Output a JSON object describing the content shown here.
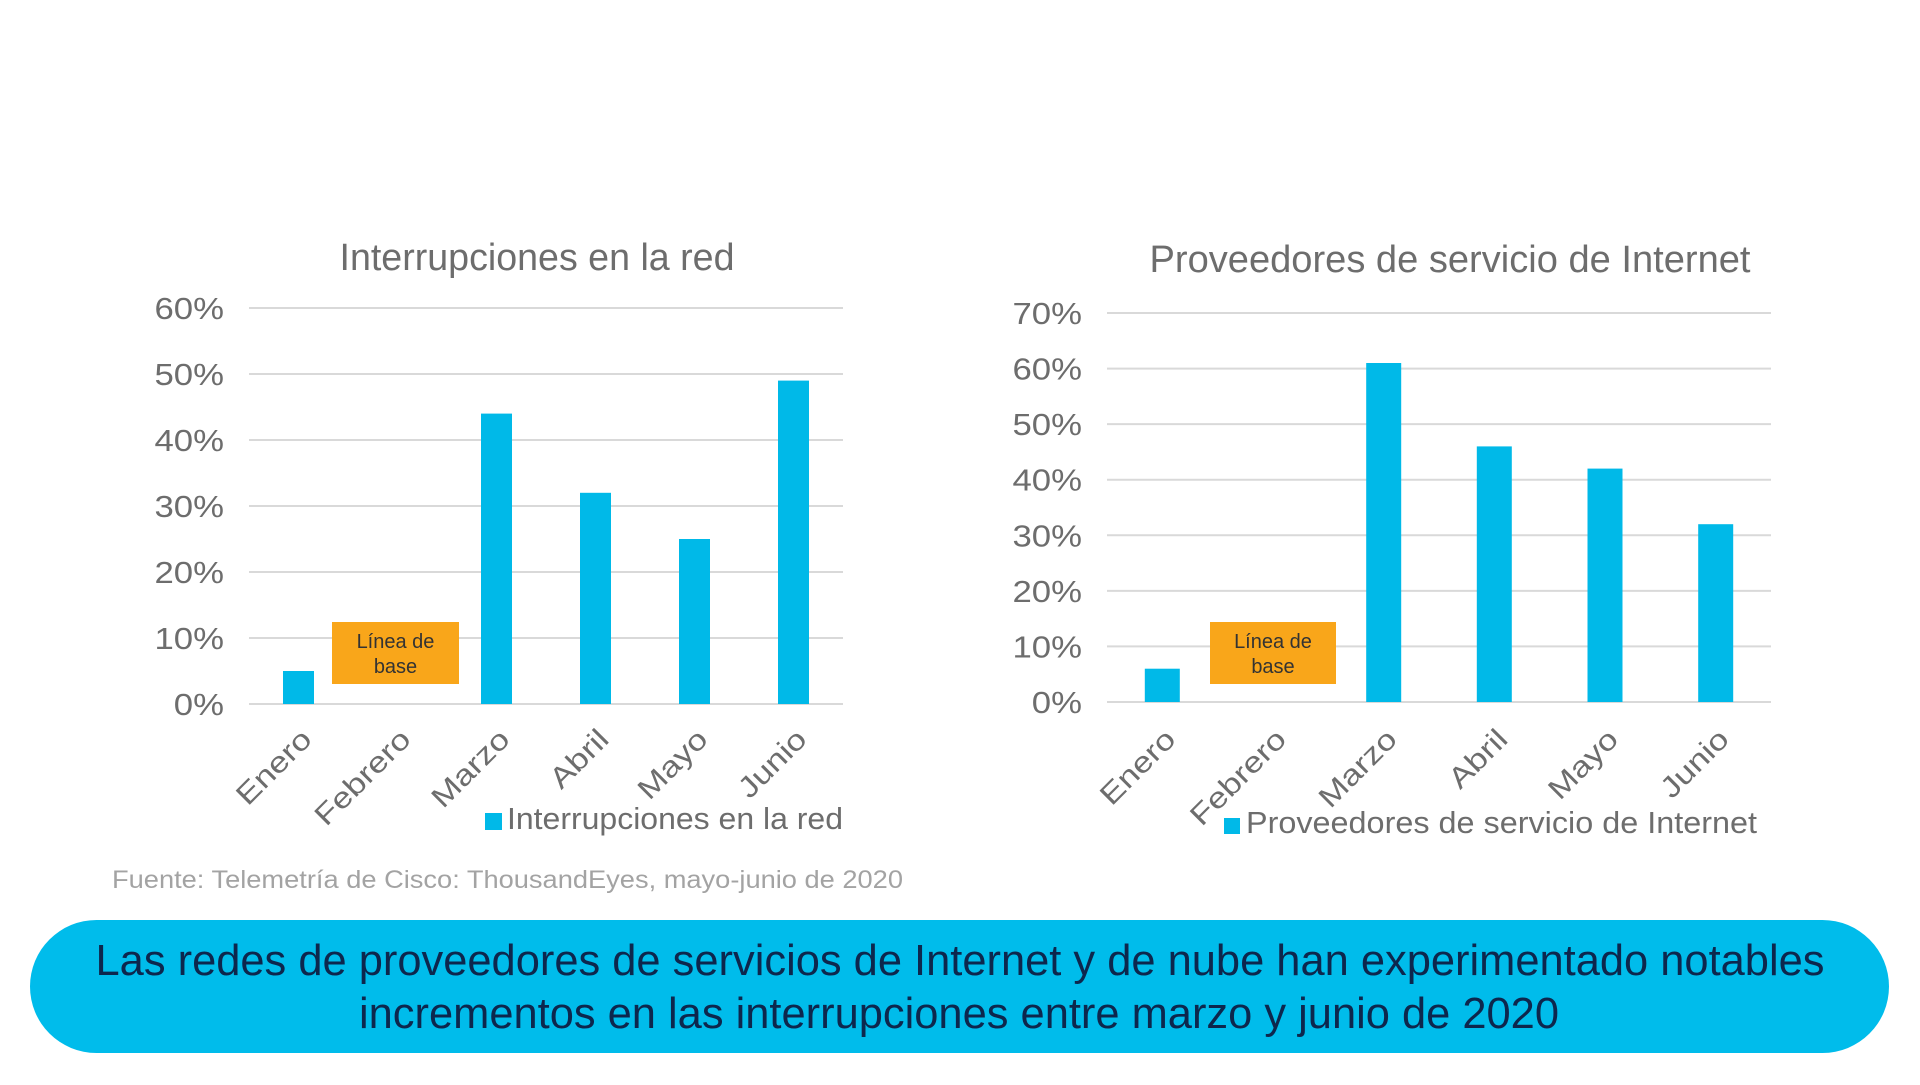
{
  "colors": {
    "bar": "#00b9e8",
    "baseline_box": "#f9a61a",
    "banner": "#00bceb",
    "banner_text": "#0d274d",
    "axis_text": "#6d6d6d",
    "grid": "#d9d9d9",
    "source_text": "#a3a3a3"
  },
  "chart_data": [
    {
      "type": "bar",
      "title": "Interrupciones en la red",
      "xlabel": "",
      "ylabel": "",
      "categories": [
        "Enero",
        "Febrero",
        "Marzo",
        "Abril",
        "Mayo",
        "Junio"
      ],
      "series": [
        {
          "name": "Interrupciones en la red",
          "values": [
            5,
            null,
            44,
            32,
            25,
            49
          ]
        }
      ],
      "ylim": [
        0,
        60
      ],
      "yticks": [
        0,
        10,
        20,
        30,
        40,
        50,
        60
      ],
      "ytick_labels": [
        "0%",
        "10%",
        "20%",
        "30%",
        "40%",
        "50%",
        "60%"
      ],
      "grid": true,
      "legend": "bottom",
      "annotation": {
        "category": "Febrero",
        "lines": [
          "Línea de",
          "base"
        ]
      }
    },
    {
      "type": "bar",
      "title": "Proveedores de servicio de Internet",
      "xlabel": "",
      "ylabel": "",
      "categories": [
        "Enero",
        "Febrero",
        "Marzo",
        "Abril",
        "Mayo",
        "Junio"
      ],
      "series": [
        {
          "name": "Proveedores de servicio de Internet",
          "values": [
            6,
            null,
            61,
            46,
            42,
            32
          ]
        }
      ],
      "ylim": [
        0,
        70
      ],
      "yticks": [
        0,
        10,
        20,
        30,
        40,
        50,
        60,
        70
      ],
      "ytick_labels": [
        "0%",
        "10%",
        "20%",
        "30%",
        "40%",
        "50%",
        "60%",
        "70%"
      ],
      "grid": true,
      "legend": "bottom",
      "annotation": {
        "category": "Febrero",
        "lines": [
          "Línea de",
          "base"
        ]
      }
    }
  ],
  "source": "Fuente: Telemetría de Cisco: ThousandEyes, mayo-junio de 2020",
  "banner": {
    "lines": [
      "Las redes de proveedores de servicios de Internet y de nube han experimentado notables",
      "incrementos en las interrupciones entre marzo y junio de 2020"
    ]
  }
}
